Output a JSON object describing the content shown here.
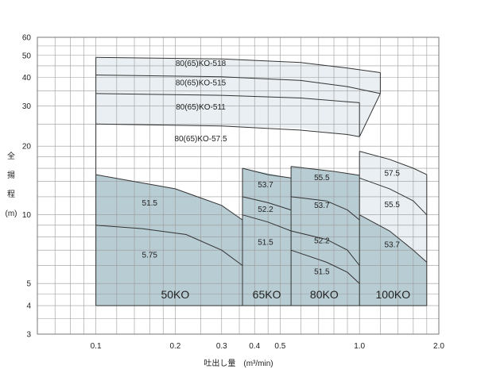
{
  "chart_data": {
    "type": "line",
    "x_scale": "log",
    "y_scale": "log",
    "xlim": [
      0.06,
      2.0
    ],
    "ylim": [
      3,
      60
    ],
    "xticks": [
      {
        "v": 0.1,
        "label": "0.1"
      },
      {
        "v": 0.2,
        "label": "0.2"
      },
      {
        "v": 0.3,
        "label": "0.3"
      },
      {
        "v": 0.4,
        "label": "0.4"
      },
      {
        "v": 0.5,
        "label": "0.5"
      },
      {
        "v": 1.0,
        "label": "1.0"
      },
      {
        "v": 2.0,
        "label": "2.0"
      }
    ],
    "xgrid": [
      0.06,
      0.07,
      0.08,
      0.09,
      0.1,
      0.12,
      0.14,
      0.16,
      0.18,
      0.2,
      0.25,
      0.3,
      0.35,
      0.4,
      0.45,
      0.5,
      0.6,
      0.7,
      0.8,
      0.9,
      1.0,
      1.2,
      1.4,
      1.6,
      1.8,
      2.0
    ],
    "yticks": [
      {
        "v": 3,
        "label": "3"
      },
      {
        "v": 4,
        "label": "4"
      },
      {
        "v": 5,
        "label": "5"
      },
      {
        "v": 10,
        "label": "10"
      },
      {
        "v": 20,
        "label": "20"
      },
      {
        "v": 30,
        "label": "30"
      },
      {
        "v": 40,
        "label": "40"
      },
      {
        "v": 50,
        "label": "50"
      },
      {
        "v": 60,
        "label": "60"
      }
    ],
    "ygrid": [
      3,
      3.5,
      4,
      4.5,
      5,
      6,
      7,
      8,
      9,
      10,
      12,
      14,
      16,
      18,
      20,
      25,
      30,
      35,
      40,
      45,
      50,
      55,
      60
    ],
    "y_axis_label": [
      "全",
      "揚",
      "程",
      "(m)"
    ],
    "x_axis_label": "吐出し量　(m³/min)",
    "colors": {
      "light_region": "#e9eff2",
      "dark_region": "#b8ccd3",
      "line": "#333333",
      "grid": "#9a9a9a"
    },
    "regions": [
      {
        "name": "50KO",
        "shade": "dark",
        "polygon": [
          [
            0.1,
            4
          ],
          [
            0.1,
            15
          ],
          [
            0.2,
            13
          ],
          [
            0.3,
            11
          ],
          [
            0.36,
            9.5
          ],
          [
            0.36,
            4
          ]
        ],
        "label_at": [
          0.2,
          4.3
        ]
      },
      {
        "name": "65KO",
        "shade": "dark",
        "polygon": [
          [
            0.36,
            4
          ],
          [
            0.36,
            16
          ],
          [
            0.55,
            14.5
          ],
          [
            0.55,
            4
          ]
        ],
        "label_at": [
          0.445,
          4.3
        ]
      },
      {
        "name": "80KO",
        "shade": "dark",
        "polygon": [
          [
            0.55,
            4
          ],
          [
            0.55,
            16.3
          ],
          [
            1.0,
            14.9
          ],
          [
            1.0,
            4
          ]
        ],
        "label_at": [
          0.735,
          4.3
        ]
      },
      {
        "name": "100KO",
        "shade": "dark",
        "polygon": [
          [
            1.0,
            4
          ],
          [
            1.0,
            10
          ],
          [
            1.3,
            8.5
          ],
          [
            1.8,
            6.2
          ],
          [
            1.8,
            4
          ]
        ],
        "label_at": [
          1.34,
          4.3
        ]
      },
      {
        "name": "80(65)KO-518",
        "shade": "light",
        "polygon": [
          [
            0.1,
            4
          ],
          [
            0.1,
            49
          ],
          [
            0.4,
            47.5
          ],
          [
            0.8,
            45
          ],
          [
            1.2,
            42
          ],
          [
            1.2,
            34
          ],
          [
            1.0,
            22
          ],
          [
            0.6,
            24
          ],
          [
            0.1,
            25
          ]
        ]
      },
      {
        "name": "100-light",
        "shade": "light",
        "polygon": [
          [
            1.0,
            10
          ],
          [
            1.0,
            19
          ],
          [
            1.3,
            17.5
          ],
          [
            1.8,
            15
          ],
          [
            1.8,
            6.2
          ],
          [
            1.3,
            8.5
          ]
        ]
      }
    ],
    "series": [
      {
        "name": "80(65)KO-518",
        "x": [
          0.1,
          0.3,
          0.6,
          0.9,
          1.2
        ],
        "y": [
          49,
          48.2,
          46.5,
          44,
          42
        ]
      },
      {
        "name": "80(65)KO-515",
        "x": [
          0.1,
          0.3,
          0.6,
          0.9,
          1.2
        ],
        "y": [
          41,
          40.3,
          38.8,
          36.5,
          34
        ]
      },
      {
        "name": "80(65)KO-511",
        "x": [
          0.1,
          0.3,
          0.6,
          0.9,
          1.0
        ],
        "y": [
          34,
          33.4,
          32.5,
          31.3,
          31
        ]
      },
      {
        "name": "80(65)KO-57.5",
        "x": [
          0.1,
          0.3,
          0.6,
          0.9,
          1.0
        ],
        "y": [
          25,
          24.5,
          23.5,
          22.5,
          22
        ]
      },
      {
        "name": "50-51.5",
        "x": [
          0.1,
          0.2,
          0.3,
          0.36
        ],
        "y": [
          15,
          13,
          11,
          9.5
        ]
      },
      {
        "name": "50-5.75",
        "x": [
          0.1,
          0.15,
          0.22,
          0.3,
          0.36
        ],
        "y": [
          9,
          8.7,
          8.2,
          7,
          6
        ]
      },
      {
        "name": "65-53.7",
        "x": [
          0.36,
          0.45,
          0.55
        ],
        "y": [
          16,
          15,
          14.5
        ]
      },
      {
        "name": "65-52.2",
        "x": [
          0.36,
          0.45,
          0.55
        ],
        "y": [
          12,
          11.3,
          10.5
        ]
      },
      {
        "name": "65-51.5",
        "x": [
          0.36,
          0.45,
          0.55
        ],
        "y": [
          10,
          9.3,
          8.5
        ]
      },
      {
        "name": "80-55.5",
        "x": [
          0.55,
          0.8,
          1.0
        ],
        "y": [
          16.3,
          15.5,
          14.9
        ]
      },
      {
        "name": "80-53.7",
        "x": [
          0.55,
          0.75,
          0.9,
          1.0
        ],
        "y": [
          12,
          11.5,
          10.5,
          9.5
        ]
      },
      {
        "name": "80-52.2",
        "x": [
          0.55,
          0.75,
          0.9,
          1.0
        ],
        "y": [
          8.5,
          7.8,
          7,
          6
        ]
      },
      {
        "name": "80-51.5",
        "x": [
          0.55,
          0.75,
          0.9,
          1.0
        ],
        "y": [
          7,
          6.2,
          5.6,
          5
        ]
      },
      {
        "name": "100-57.5",
        "x": [
          1.0,
          1.3,
          1.6,
          1.8
        ],
        "y": [
          19,
          17.5,
          16,
          15
        ]
      },
      {
        "name": "100-55.5",
        "x": [
          1.0,
          1.3,
          1.6,
          1.8
        ],
        "y": [
          14.5,
          13,
          11.5,
          10
        ]
      },
      {
        "name": "100-53.7",
        "x": [
          1.0,
          1.3,
          1.6,
          1.8
        ],
        "y": [
          10,
          8.5,
          7,
          6.2
        ]
      }
    ],
    "boundaries": [
      {
        "x": [
          1.0,
          1.2
        ],
        "y": [
          22,
          34
        ]
      },
      {
        "x": [
          1.2,
          1.2
        ],
        "y": [
          34,
          42
        ]
      },
      {
        "x": [
          1.0,
          1.0
        ],
        "y": [
          22,
          31
        ]
      },
      {
        "x": [
          0.36,
          0.36
        ],
        "y": [
          4,
          16
        ]
      },
      {
        "x": [
          0.55,
          0.55
        ],
        "y": [
          4,
          16.3
        ]
      },
      {
        "x": [
          1.0,
          1.0
        ],
        "y": [
          4,
          19
        ]
      },
      {
        "x": [
          1.8,
          1.8
        ],
        "y": [
          4,
          15
        ]
      },
      {
        "x": [
          0.1,
          0.1
        ],
        "y": [
          4,
          49
        ]
      },
      {
        "x": [
          0.1,
          1.8
        ],
        "y": [
          4,
          4
        ]
      }
    ],
    "curve_labels": [
      {
        "text": "80(65)KO-518",
        "at": [
          0.25,
          45
        ]
      },
      {
        "text": "80(65)KO-515",
        "at": [
          0.25,
          37
        ]
      },
      {
        "text": "80(65)KO-511",
        "at": [
          0.25,
          29
        ]
      },
      {
        "text": "80(65)KO-57.5",
        "at": [
          0.25,
          21
        ]
      },
      {
        "text": "51.5",
        "at": [
          0.16,
          11
        ]
      },
      {
        "text": "5.75",
        "at": [
          0.16,
          6.5
        ]
      },
      {
        "text": "53.7",
        "at": [
          0.44,
          13.2
        ]
      },
      {
        "text": "52.2",
        "at": [
          0.44,
          10.3
        ]
      },
      {
        "text": "51.5",
        "at": [
          0.44,
          7.4
        ]
      },
      {
        "text": "55.5",
        "at": [
          0.72,
          14.2
        ]
      },
      {
        "text": "53.7",
        "at": [
          0.72,
          10.7
        ]
      },
      {
        "text": "52.2",
        "at": [
          0.72,
          7.5
        ]
      },
      {
        "text": "51.5",
        "at": [
          0.72,
          5.5
        ]
      },
      {
        "text": "57.5",
        "at": [
          1.33,
          14.8
        ]
      },
      {
        "text": "55.5",
        "at": [
          1.33,
          10.8
        ]
      },
      {
        "text": "53.7",
        "at": [
          1.33,
          7.2
        ]
      }
    ]
  }
}
